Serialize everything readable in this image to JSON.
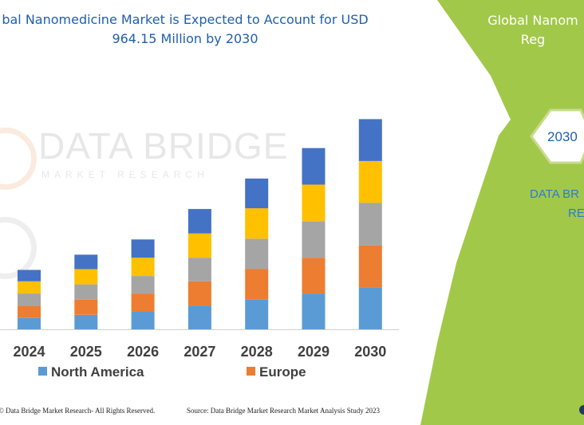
{
  "title_lines": [
    "bal Nanomedicine Market is Expected to Account for USD",
    "964.15 Million by 2030"
  ],
  "footer_left": "© Data Bridge Market Research-  All Rights Reserved.",
  "footer_right": "Source: Data Bridge Market Research  Market Analysis Study 2023",
  "watermark": {
    "name": "DATA BRIDGE",
    "tagline": "MARKET RESEARCH"
  },
  "side_panel": {
    "title_lines": [
      "Global Nanom",
      "Reg"
    ],
    "year": "2030",
    "sub_lines": [
      "DATA BR",
      "RE"
    ]
  },
  "colors": {
    "north_america": "#5b9bd5",
    "europe": "#ed7d31",
    "segment3": "#a5a5a5",
    "segment4": "#ffc000",
    "segment5": "#4472c4",
    "panel_green": "#a2c84a",
    "panel_green_light": "#c8dc8e",
    "title_blue": "#1f5fae"
  },
  "chart_data": {
    "type": "bar",
    "stacked": true,
    "categories": [
      "2024",
      "2025",
      "2026",
      "2027",
      "2028",
      "2029",
      "2030"
    ],
    "series": [
      {
        "name": "North America",
        "color": "#5b9bd5",
        "values": [
          15,
          19,
          23,
          31,
          39,
          47,
          55
        ]
      },
      {
        "name": "Europe",
        "color": "#ed7d31",
        "values": [
          16,
          20,
          24,
          32,
          40,
          47,
          55
        ]
      },
      {
        "color": "#a5a5a5",
        "values": [
          16,
          20,
          23,
          31,
          40,
          48,
          56
        ]
      },
      {
        "color": "#ffc000",
        "values": [
          16,
          20,
          24,
          32,
          40,
          48,
          55
        ]
      },
      {
        "color": "#4472c4",
        "values": [
          15,
          19,
          24,
          32,
          39,
          48,
          55
        ]
      }
    ],
    "legend_labels": [
      "North America",
      "Europe"
    ],
    "legend_position": "bottom",
    "grid": false,
    "y_axis_visible": false,
    "ylim": [
      0,
      290
    ]
  }
}
